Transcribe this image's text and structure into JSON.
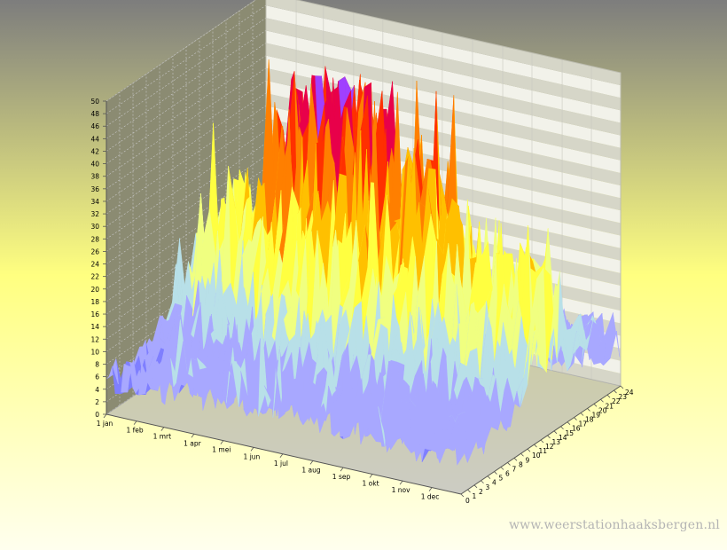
{
  "watermark": "www.weerstationhaaksbergen.nl",
  "colors": {
    "bg_top": "#7d7d7d",
    "bg_mid": "#ffff80",
    "bg_bottom": "#ffffee",
    "left_wall": "#8b8b72",
    "back_wall_light": "#f2f2ea",
    "back_wall_dark": "#d6d6c8",
    "grid": "#c9c9c9",
    "axis_text": "#000000",
    "palette": [
      "#7f7fff",
      "#a8a8ff",
      "#b8e0e8",
      "#f0ff80",
      "#ffff40",
      "#ffc000",
      "#ff7f00",
      "#ff3000",
      "#e8004a",
      "#a040ff"
    ]
  },
  "chart_data": {
    "type": "surface",
    "title": "",
    "xlabel": "",
    "ylabel": "",
    "zlabel": "",
    "x_axis": {
      "tick_labels": [
        "1 jan",
        "1 feb",
        "1 mrt",
        "1 apr",
        "1 mei",
        "1 jun",
        "1 jul",
        "1 aug",
        "1 sep",
        "1 okt",
        "1 nov",
        "1 dec"
      ],
      "tick_days": [
        1,
        32,
        60,
        91,
        121,
        152,
        182,
        213,
        244,
        274,
        305,
        335
      ],
      "range_days": [
        1,
        365
      ]
    },
    "y_axis": {
      "tick_labels": [
        "0",
        "1",
        "2",
        "3",
        "4",
        "5",
        "6",
        "7",
        "8",
        "9",
        "10",
        "11",
        "12",
        "13",
        "14",
        "15",
        "16",
        "17",
        "18",
        "19",
        "20",
        "21",
        "22",
        "23",
        "24"
      ],
      "range": [
        0,
        24
      ]
    },
    "z_axis": {
      "tick_labels": [
        "0",
        "2",
        "4",
        "6",
        "8",
        "10",
        "12",
        "14",
        "16",
        "18",
        "20",
        "22",
        "24",
        "26",
        "28",
        "30",
        "32",
        "34",
        "36",
        "38",
        "40",
        "42",
        "44",
        "46",
        "48",
        "50"
      ],
      "range": [
        0,
        50
      ]
    },
    "monthly_hourly_values": [
      [
        6,
        6,
        5,
        5,
        5,
        6,
        6,
        7,
        8,
        10,
        12,
        14,
        16,
        17,
        17,
        16,
        14,
        12,
        10,
        9,
        8,
        7,
        7,
        6,
        6
      ],
      [
        7,
        7,
        6,
        6,
        6,
        6,
        7,
        8,
        10,
        12,
        15,
        18,
        20,
        21,
        21,
        19,
        17,
        14,
        12,
        10,
        9,
        8,
        8,
        7,
        7
      ],
      [
        8,
        8,
        7,
        7,
        7,
        7,
        8,
        10,
        13,
        16,
        20,
        24,
        27,
        28,
        27,
        25,
        21,
        18,
        15,
        12,
        11,
        10,
        9,
        8,
        8
      ],
      [
        9,
        8,
        8,
        7,
        7,
        8,
        10,
        13,
        17,
        21,
        26,
        31,
        35,
        36,
        35,
        32,
        27,
        22,
        18,
        14,
        12,
        11,
        10,
        9,
        9
      ],
      [
        10,
        9,
        8,
        8,
        8,
        9,
        12,
        16,
        20,
        25,
        30,
        35,
        39,
        40,
        38,
        34,
        28,
        23,
        18,
        15,
        13,
        12,
        11,
        10,
        10
      ],
      [
        10,
        9,
        8,
        8,
        8,
        10,
        13,
        17,
        21,
        26,
        30,
        34,
        37,
        38,
        36,
        32,
        27,
        22,
        18,
        15,
        13,
        12,
        11,
        10,
        10
      ],
      [
        9,
        8,
        8,
        7,
        7,
        9,
        12,
        15,
        19,
        23,
        27,
        31,
        34,
        35,
        34,
        30,
        26,
        21,
        17,
        14,
        12,
        11,
        10,
        9,
        9
      ],
      [
        9,
        8,
        8,
        7,
        7,
        8,
        10,
        13,
        17,
        21,
        25,
        29,
        32,
        33,
        31,
        28,
        24,
        20,
        16,
        13,
        11,
        10,
        10,
        9,
        9
      ],
      [
        8,
        8,
        7,
        7,
        7,
        7,
        9,
        11,
        14,
        18,
        22,
        26,
        28,
        29,
        28,
        25,
        21,
        17,
        14,
        12,
        10,
        9,
        9,
        8,
        8
      ],
      [
        8,
        8,
        7,
        7,
        7,
        7,
        8,
        9,
        11,
        14,
        17,
        20,
        22,
        23,
        22,
        20,
        17,
        14,
        12,
        10,
        9,
        9,
        8,
        8,
        8
      ],
      [
        7,
        7,
        6,
        6,
        6,
        6,
        7,
        8,
        9,
        11,
        14,
        17,
        19,
        20,
        19,
        17,
        15,
        13,
        11,
        10,
        9,
        8,
        8,
        7,
        7
      ],
      [
        8,
        8,
        7,
        7,
        7,
        7,
        8,
        8,
        9,
        11,
        14,
        17,
        20,
        22,
        22,
        20,
        18,
        15,
        13,
        11,
        10,
        9,
        9,
        8,
        8
      ]
    ]
  }
}
